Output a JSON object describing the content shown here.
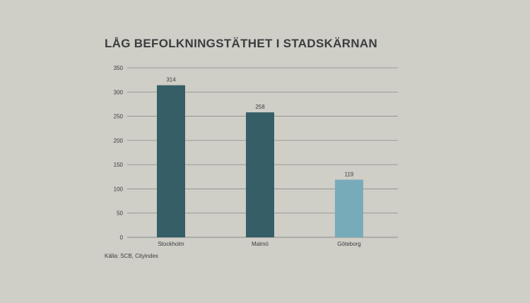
{
  "title": "LÅG BEFOLKNINGSTÄTHET I STADSKÄRNAN",
  "source": "Källa: SCB, Cityindex",
  "colors": {
    "background": "#cfcec7",
    "gridline": "#8a8b88",
    "bar_dark": "#355e67",
    "bar_light": "#78abba",
    "text": "#3a3d3f"
  },
  "chart_data": {
    "type": "bar",
    "title": "LÅG BEFOLKNINGSTÄTHET I STADSKÄRNAN",
    "xlabel": "",
    "ylabel": "",
    "categories": [
      "Stockholm",
      "Malmö",
      "Göteborg"
    ],
    "values": [
      314,
      258,
      119
    ],
    "data_labels": [
      "314",
      "258",
      "119"
    ],
    "bar_colors": [
      "#355e67",
      "#355e67",
      "#78abba"
    ],
    "ylim": [
      0,
      350
    ],
    "yticks": [
      0,
      50,
      100,
      150,
      200,
      250,
      300,
      350
    ],
    "ytick_labels": [
      "0",
      "50",
      "100",
      "150",
      "200",
      "250",
      "300",
      "350"
    ],
    "grid": true,
    "legend": "none"
  }
}
